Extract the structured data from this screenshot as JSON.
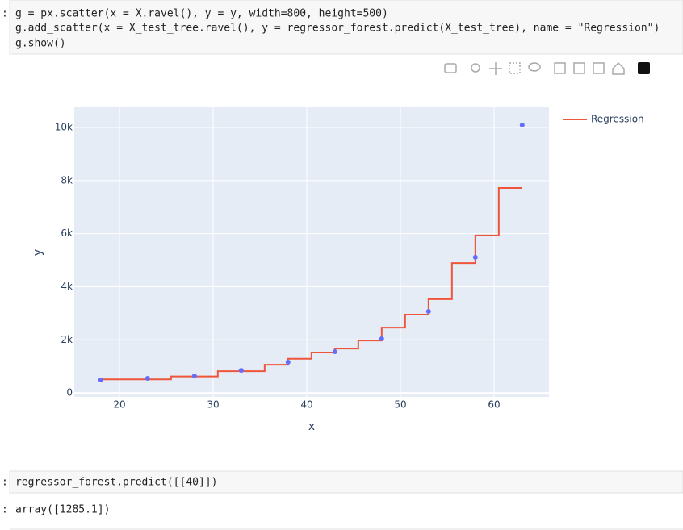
{
  "cells": [
    {
      "prompt": ":",
      "code": [
        "g = px.scatter(x = X.ravel(), y = y, width=800, height=500)",
        "g.add_scatter(x = X_test_tree.ravel(), y = regressor_forest.predict(X_test_tree), name = \"Regression\")",
        "g.show()"
      ]
    },
    {
      "prompt": ":",
      "code": [
        "regressor_forest.predict([[40]])"
      ],
      "output": "array([1285.1])"
    }
  ],
  "chart_data": {
    "type": "scatter",
    "x_label": "x",
    "y_label": "y",
    "xlim": [
      15.17,
      65.86
    ],
    "ylim": [
      -150,
      10760
    ],
    "xticks": [
      20,
      30,
      40,
      50,
      60
    ],
    "yticks": [
      0,
      {
        "value": 2000,
        "label": "2k"
      },
      {
        "value": 4000,
        "label": "4k"
      },
      {
        "value": 6000,
        "label": "6k"
      },
      {
        "value": 8000,
        "label": "8k"
      },
      {
        "value": 10000,
        "label": "10k"
      }
    ],
    "grid": true,
    "legend": "top-right",
    "series": [
      {
        "type": "scatter",
        "color": "#636efa",
        "x": [
          18,
          23,
          28,
          33,
          38,
          43,
          48,
          53,
          58,
          63
        ],
        "values": [
          490,
          550,
          640,
          850,
          1155,
          1550,
          2040,
          3070,
          5110,
          10090
        ]
      },
      {
        "type": "line",
        "name": "Regression",
        "color": "#ef553b",
        "x": [
          18,
          25.5,
          25.5,
          30.5,
          30.5,
          35.5,
          35.5,
          38,
          38,
          40.5,
          40.5,
          43,
          43,
          45.5,
          45.5,
          48,
          48,
          50.5,
          50.5,
          53,
          53,
          55.5,
          55.5,
          58,
          58,
          60.5,
          60.5,
          63
        ],
        "values": [
          510,
          510,
          620,
          620,
          820,
          820,
          1060,
          1060,
          1285,
          1285,
          1520,
          1520,
          1670,
          1670,
          1975,
          1975,
          2460,
          2460,
          2950,
          2950,
          3530,
          3530,
          4890,
          4890,
          5930,
          5930,
          7720,
          7720
        ]
      }
    ]
  }
}
